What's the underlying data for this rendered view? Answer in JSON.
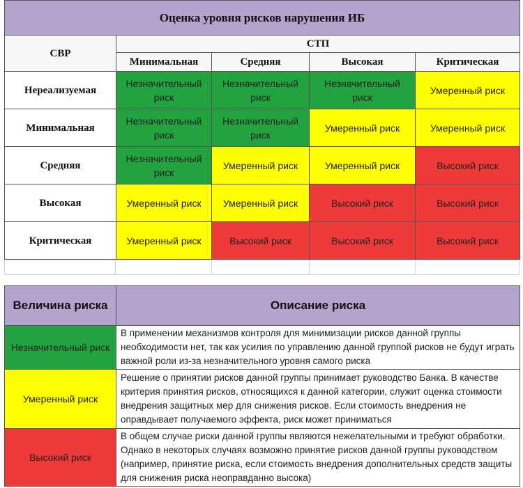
{
  "risk_matrix": {
    "title": "Оценка уровня рисков нарушения ИБ",
    "row_header": "СВР",
    "column_header": "СТП",
    "columns": [
      "Минимальная",
      "Средняя",
      "Высокая",
      "Критическая"
    ],
    "rows": [
      {
        "label": "Нереализуемая",
        "cells": [
          {
            "text": "Незначительный риск",
            "color": "#22a340"
          },
          {
            "text": "Незначительный риск",
            "color": "#22a340"
          },
          {
            "text": "Незначительный риск",
            "color": "#22a340"
          },
          {
            "text": "Умеренный риск",
            "color": "#ffff00"
          }
        ]
      },
      {
        "label": "Минимальная",
        "cells": [
          {
            "text": "Незначительный риск",
            "color": "#22a340"
          },
          {
            "text": "Незначительный риск",
            "color": "#22a340"
          },
          {
            "text": "Умеренный риск",
            "color": "#ffff00"
          },
          {
            "text": "Умеренный риск",
            "color": "#ffff00"
          }
        ]
      },
      {
        "label": "Средняя",
        "cells": [
          {
            "text": "Незначительный риск",
            "color": "#22a340"
          },
          {
            "text": "Умеренный риск",
            "color": "#ffff00"
          },
          {
            "text": "Умеренный риск",
            "color": "#ffff00"
          },
          {
            "text": "Высокий риск",
            "color": "#ef3a3a"
          }
        ]
      },
      {
        "label": "Высокая",
        "cells": [
          {
            "text": "Умеренный риск",
            "color": "#ffff00"
          },
          {
            "text": "Умеренный риск",
            "color": "#ffff00"
          },
          {
            "text": "Высокий риск",
            "color": "#ef3a3a"
          },
          {
            "text": "Высокий риск",
            "color": "#ef3a3a"
          }
        ]
      },
      {
        "label": "Критическая",
        "cells": [
          {
            "text": "Умеренный риск",
            "color": "#ffff00"
          },
          {
            "text": "Высокий риск",
            "color": "#ef3a3a"
          },
          {
            "text": "Высокий риск",
            "color": "#ef3a3a"
          },
          {
            "text": "Высокий риск",
            "color": "#ef3a3a"
          }
        ]
      }
    ]
  },
  "risk_descriptions": {
    "headers": [
      "Величина риска",
      "Описание риска"
    ],
    "rows": [
      {
        "level": "Незначительный риск",
        "color": "#22a340",
        "description": "В применении механизмов контроля для минимизации рисков данной группы необходимости нет, так как усилия по управлению данной группой рисков не будут играть важной роли из-за незначительного уровня самого риска"
      },
      {
        "level": "Умеренный риск",
        "color": "#ffff00",
        "description": "Решение о принятии рисков данной группы принимает руководство Банка. В качестве критерия принятия рисков, относящихся к данной категории, служит оценка стоимости внедрения защитных мер для снижения рисков. Если стоимость внедрения не оправдывает получаемого эффекта, риск может приниматься"
      },
      {
        "level": "Высокий риск",
        "color": "#ef3a3a",
        "description": "В общем случае риски данной группы являются нежелательными и требуют обработки. Однако в некоторых случаях возможно принятие рисков данной группы руководством (например, принятие риска, если стоимость внедрения дополнительных средств защиты для снижения риска неоправданно высока)"
      }
    ]
  }
}
